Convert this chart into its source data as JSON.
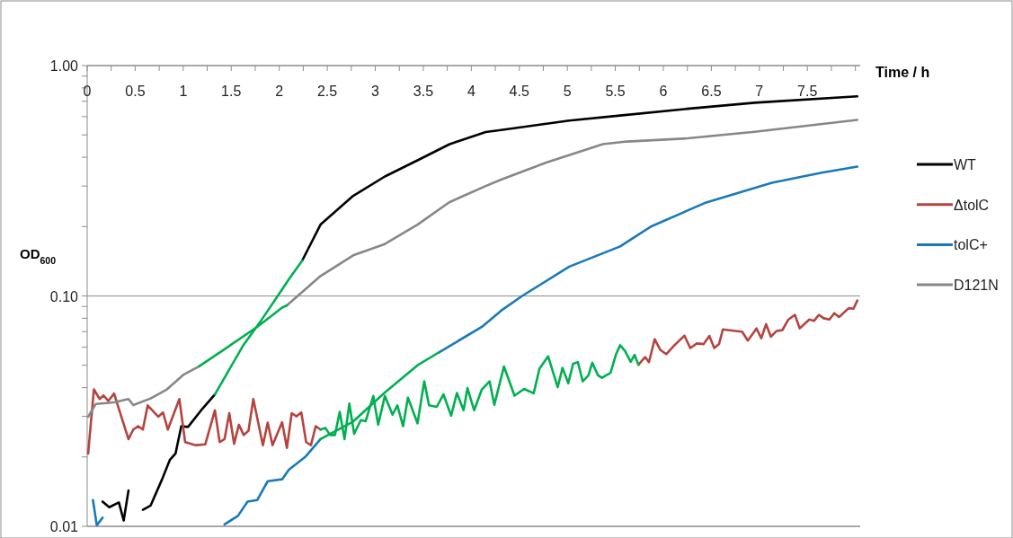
{
  "chart_data": {
    "type": "line",
    "xlabel": "Time / h",
    "ylabel": "OD$_{600}$",
    "log": "y",
    "xlim": [
      0,
      8.05
    ],
    "ylim": [
      0.01,
      1
    ],
    "xticks": [
      0,
      {
        "value": 0.25,
        "label": null
      },
      0.5,
      {
        "value": 0.75,
        "label": null
      },
      1,
      {
        "value": 1.25,
        "label": null
      },
      1.5,
      {
        "value": 1.75,
        "label": null
      },
      2,
      {
        "value": 2.25,
        "label": null
      },
      2.5,
      {
        "value": 2.75,
        "label": null
      },
      3,
      {
        "value": 3.25,
        "label": null
      },
      3.5,
      {
        "value": 3.75,
        "label": null
      },
      4,
      {
        "value": 4.25,
        "label": null
      },
      4.5,
      {
        "value": 4.75,
        "label": null
      },
      5,
      {
        "value": 5.25,
        "label": null
      },
      5.5,
      {
        "value": 5.75,
        "label": null
      },
      6,
      {
        "value": 6.25,
        "label": null
      },
      6.5,
      {
        "value": 6.75,
        "label": null
      },
      7,
      {
        "value": 7.25,
        "label": null
      },
      7.5,
      {
        "value": 7.75,
        "label": null
      },
      {
        "value": 8,
        "label": null
      }
    ],
    "yticks": [
      {
        "value": 0.01,
        "label": "0.01"
      },
      {
        "value": 0.02,
        "label": null
      },
      {
        "value": 0.03,
        "label": null
      },
      {
        "value": 0.04,
        "label": null
      },
      {
        "value": 0.05,
        "label": null
      },
      {
        "value": 0.06,
        "label": null
      },
      {
        "value": 0.07,
        "label": null
      },
      {
        "value": 0.08,
        "label": null
      },
      {
        "value": 0.09,
        "label": null
      },
      {
        "value": 0.1,
        "label": "0.10"
      },
      {
        "value": 0.2,
        "label": null
      },
      {
        "value": 0.3,
        "label": null
      },
      {
        "value": 0.4,
        "label": null
      },
      {
        "value": 0.5,
        "label": null
      },
      {
        "value": 0.6,
        "label": null
      },
      {
        "value": 0.7,
        "label": null
      },
      {
        "value": 0.8,
        "label": null
      },
      {
        "value": 0.9,
        "label": null
      },
      {
        "value": 1,
        "label": "1.00"
      }
    ],
    "grid": "y",
    "legend": "right",
    "line_style": "solid",
    "marker": "none",
    "series": [
      {
        "name": "WT",
        "color": "#000000",
        "x": [
          0.16,
          0.23,
          0.33,
          0.38,
          0.43,
          0.51,
          0.58,
          0.66,
          0.78,
          0.86,
          0.92,
          0.98,
          1.05,
          1.2,
          1.33,
          1.8,
          2.24,
          2.43,
          2.77,
          3.1,
          3.44,
          3.77,
          4.15,
          4.31,
          5.02,
          5.55,
          6.25,
          6.95,
          8.02
        ],
        "values": [
          0.0128,
          0.0121,
          0.0127,
          0.0106,
          0.0143,
          null,
          0.0118,
          0.0123,
          0.016,
          0.0194,
          0.0207,
          0.0272,
          0.027,
          0.0324,
          0.0374,
          null,
          0.1426,
          0.204,
          0.272,
          0.33,
          0.388,
          0.455,
          0.515,
          0.525,
          0.577,
          0.607,
          0.649,
          0.69,
          0.735
        ]
      },
      {
        "name": "ΔtolC",
        "color": "#b5443f",
        "x": [
          0.01,
          0.07,
          0.13,
          0.17,
          0.22,
          0.28,
          0.34,
          0.43,
          0.48,
          0.53,
          0.58,
          0.63,
          0.74,
          0.79,
          0.84,
          0.96,
          1.02,
          1.13,
          1.23,
          1.33,
          1.38,
          1.43,
          1.48,
          1.53,
          1.58,
          1.63,
          1.68,
          1.73,
          1.83,
          1.88,
          1.93,
          2.03,
          2.08,
          2.13,
          2.18,
          2.23,
          2.28,
          2.33,
          2.38,
          2.43,
          4.0,
          5.74,
          5.81,
          5.85,
          5.91,
          5.97,
          6.03,
          6.12,
          6.22,
          6.28,
          6.35,
          6.42,
          6.48,
          6.53,
          6.58,
          6.62,
          6.75,
          6.82,
          6.88,
          6.97,
          7.02,
          7.07,
          7.12,
          7.18,
          7.24,
          7.3,
          7.37,
          7.42,
          7.52,
          7.57,
          7.62,
          7.67,
          7.73,
          7.78,
          7.83,
          7.93,
          7.98,
          8.02
        ],
        "values": [
          0.0207,
          0.0393,
          0.0357,
          0.037,
          0.035,
          0.0377,
          0.0314,
          0.0239,
          0.0263,
          0.0272,
          0.0263,
          0.0335,
          0.0299,
          0.0312,
          0.0263,
          0.0357,
          0.0232,
          0.0225,
          0.0227,
          0.0319,
          0.0232,
          0.0239,
          0.031,
          0.0228,
          0.0276,
          0.0249,
          0.026,
          0.0357,
          0.0225,
          0.0282,
          0.0225,
          0.0283,
          0.0219,
          0.031,
          0.03,
          0.0312,
          0.0232,
          0.0225,
          0.0272,
          0.0263,
          null,
          0.0503,
          0.0543,
          0.0516,
          0.0649,
          0.0582,
          0.0559,
          0.0614,
          0.0672,
          0.0594,
          0.0622,
          0.0618,
          0.067,
          0.0594,
          0.0618,
          0.0716,
          0.0705,
          0.07,
          0.064,
          0.0723,
          0.0655,
          0.0754,
          0.0665,
          0.0705,
          0.0711,
          0.0788,
          0.0828,
          0.0723,
          0.079,
          0.078,
          0.0828,
          0.08,
          0.079,
          0.0842,
          0.081,
          0.0885,
          0.088,
          0.0955
        ]
      },
      {
        "name": "tolC+",
        "color": "#1a7ab8",
        "x": [
          0.06,
          0.1,
          0.16,
          0.19,
          1.43,
          1.57,
          1.67,
          1.77,
          1.88,
          2.03,
          2.1,
          2.27,
          2.43,
          3.0,
          3.66,
          4.11,
          4.31,
          4.53,
          5.02,
          5.55,
          5.87,
          6.43,
          7.13,
          7.65,
          8.02
        ],
        "values": [
          0.013,
          0.0101,
          0.0109,
          null,
          0.0102,
          0.0111,
          0.0128,
          0.013,
          0.0157,
          0.016,
          0.0176,
          0.02,
          0.0239,
          null,
          0.0568,
          0.0734,
          0.0863,
          0.1,
          0.134,
          0.164,
          0.2,
          0.253,
          0.31,
          0.343,
          0.364
        ]
      },
      {
        "name": "D121N",
        "color": "#878787",
        "x": [
          0.01,
          0.09,
          0.28,
          0.43,
          0.48,
          0.66,
          0.83,
          1.0,
          1.165,
          1.6,
          2.08,
          2.43,
          2.77,
          3.1,
          3.44,
          3.77,
          4.15,
          4.31,
          4.78,
          5.37,
          5.62,
          6.25,
          6.95,
          8.02
        ],
        "values": [
          0.0299,
          0.034,
          0.0345,
          0.0357,
          0.0336,
          0.0359,
          0.0393,
          0.0454,
          0.0495,
          null,
          0.091,
          0.122,
          0.15,
          0.168,
          0.204,
          0.255,
          0.3,
          0.32,
          0.379,
          0.456,
          0.468,
          0.483,
          0.516,
          0.581
        ]
      },
      {
        "color": "#00b050",
        "x": [
          1.33,
          1.63,
          1.8,
          1.97,
          2.1,
          2.24
        ],
        "values": [
          0.0374,
          0.0615,
          0.077,
          0.098,
          0.118,
          0.1426
        ]
      },
      {
        "color": "#00b050",
        "x": [
          2.43,
          2.48,
          2.53,
          2.58,
          2.63,
          2.68,
          2.73,
          2.78,
          2.85,
          2.9,
          2.98,
          3.03,
          3.1,
          3.18,
          3.23,
          3.29,
          3.34,
          3.44,
          3.51,
          3.56,
          3.64,
          3.71,
          3.79,
          3.85,
          3.92,
          3.96,
          4.03,
          4.11,
          4.19,
          4.24,
          4.34,
          4.45,
          4.55,
          4.65,
          4.71,
          4.8,
          4.9,
          4.95,
          5.01,
          5.06,
          5.11,
          5.16,
          5.22,
          5.26,
          5.32,
          5.36,
          5.45,
          5.51,
          5.55,
          5.6,
          5.66,
          5.7,
          5.74
        ],
        "values": [
          0.0263,
          0.0267,
          0.0249,
          0.0249,
          0.0314,
          0.0239,
          0.0341,
          0.0252,
          0.0289,
          0.0286,
          0.0368,
          0.0276,
          0.0368,
          0.0305,
          0.0335,
          0.0272,
          0.0362,
          0.028,
          0.0426,
          0.0335,
          0.033,
          0.0374,
          0.0302,
          0.0379,
          0.0319,
          0.0398,
          0.0319,
          0.0393,
          0.0426,
          0.0337,
          0.0494,
          0.0369,
          0.0395,
          0.0378,
          0.0483,
          0.0547,
          0.0402,
          0.0487,
          0.0418,
          0.0508,
          0.0516,
          0.0426,
          0.0452,
          0.0513,
          0.0452,
          0.0441,
          0.0464,
          0.0562,
          0.0611,
          0.0578,
          0.0518,
          0.0555,
          0.0503
        ]
      },
      {
        "color": "#00b050",
        "x": [
          2.43,
          2.77,
          3.1,
          3.44,
          3.66
        ],
        "values": [
          0.0239,
          0.0285,
          0.0381,
          0.05,
          0.0568
        ]
      },
      {
        "color": "#00b050",
        "x": [
          1.165,
          1.43,
          1.77,
          2.03,
          2.08
        ],
        "values": [
          0.0495,
          0.0587,
          0.0734,
          0.089,
          0.091
        ]
      }
    ]
  }
}
